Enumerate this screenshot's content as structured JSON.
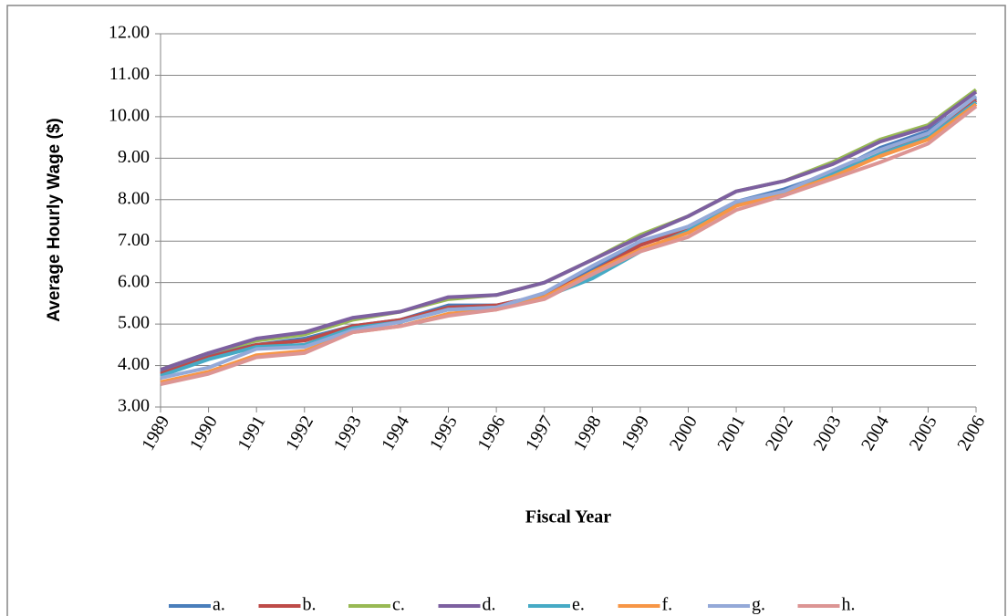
{
  "chart_data": {
    "type": "line",
    "y_label": "Average Hourly Wage ($)",
    "x_label": "Fiscal Year",
    "categories": [
      "1989",
      "1990",
      "1991",
      "1992",
      "1993",
      "1994",
      "1995",
      "1996",
      "1997",
      "1998",
      "1999",
      "2000",
      "2001",
      "2002",
      "2003",
      "2004",
      "2005",
      "2006"
    ],
    "series": [
      {
        "name": "a.",
        "color": "#4a7ebb",
        "values": [
          3.85,
          4.25,
          4.5,
          4.65,
          4.95,
          5.1,
          5.45,
          5.45,
          5.7,
          6.3,
          6.95,
          7.35,
          7.95,
          8.25,
          8.65,
          9.25,
          9.65,
          10.45
        ]
      },
      {
        "name": "b.",
        "color": "#be4b48",
        "values": [
          3.8,
          4.2,
          4.5,
          4.6,
          4.95,
          5.1,
          5.4,
          5.45,
          5.7,
          6.25,
          6.9,
          7.3,
          7.9,
          8.2,
          8.6,
          9.1,
          9.55,
          10.4
        ]
      },
      {
        "name": "c.",
        "color": "#98b954",
        "values": [
          3.9,
          4.3,
          4.6,
          4.75,
          5.1,
          5.3,
          5.6,
          5.7,
          6.0,
          6.55,
          7.15,
          7.6,
          8.2,
          8.45,
          8.9,
          9.45,
          9.8,
          10.65
        ]
      },
      {
        "name": "d.",
        "color": "#7d60a0",
        "values": [
          3.9,
          4.3,
          4.65,
          4.8,
          5.15,
          5.3,
          5.65,
          5.7,
          6.0,
          6.55,
          7.1,
          7.6,
          8.2,
          8.45,
          8.85,
          9.4,
          9.75,
          10.6
        ]
      },
      {
        "name": "e.",
        "color": "#46aac5",
        "values": [
          3.75,
          4.15,
          4.45,
          4.5,
          4.9,
          5.05,
          5.35,
          5.4,
          5.65,
          6.1,
          6.75,
          7.25,
          7.9,
          8.2,
          8.6,
          9.1,
          9.5,
          10.35
        ]
      },
      {
        "name": "f.",
        "color": "#f79646",
        "values": [
          3.6,
          3.85,
          4.25,
          4.35,
          4.8,
          4.95,
          5.25,
          5.35,
          5.65,
          6.25,
          6.8,
          7.2,
          7.85,
          8.15,
          8.55,
          9.05,
          9.45,
          10.3
        ]
      },
      {
        "name": "g.",
        "color": "#94a9d8",
        "values": [
          3.7,
          3.95,
          4.4,
          4.45,
          4.85,
          5.05,
          5.35,
          5.4,
          5.75,
          6.4,
          7.0,
          7.35,
          7.95,
          8.2,
          8.7,
          9.2,
          9.6,
          10.5
        ]
      },
      {
        "name": "h.",
        "color": "#dc9594",
        "values": [
          3.55,
          3.8,
          4.2,
          4.3,
          4.8,
          4.95,
          5.2,
          5.35,
          5.6,
          6.2,
          6.75,
          7.1,
          7.75,
          8.1,
          8.5,
          8.9,
          9.35,
          10.25
        ]
      }
    ],
    "ylim": [
      3,
      12
    ],
    "yticks": [
      {
        "value": 3,
        "label": "3.00"
      },
      {
        "value": 4,
        "label": "4.00"
      },
      {
        "value": 5,
        "label": "5.00"
      },
      {
        "value": 6,
        "label": "6.00"
      },
      {
        "value": 7,
        "label": "7.00"
      },
      {
        "value": 8,
        "label": "8.00"
      },
      {
        "value": 9,
        "label": "9.00"
      },
      {
        "value": 10,
        "label": "10.00"
      },
      {
        "value": 11,
        "label": "11.00"
      },
      {
        "value": 12,
        "label": "12.00"
      }
    ],
    "grid": true,
    "legend": "bottom"
  }
}
